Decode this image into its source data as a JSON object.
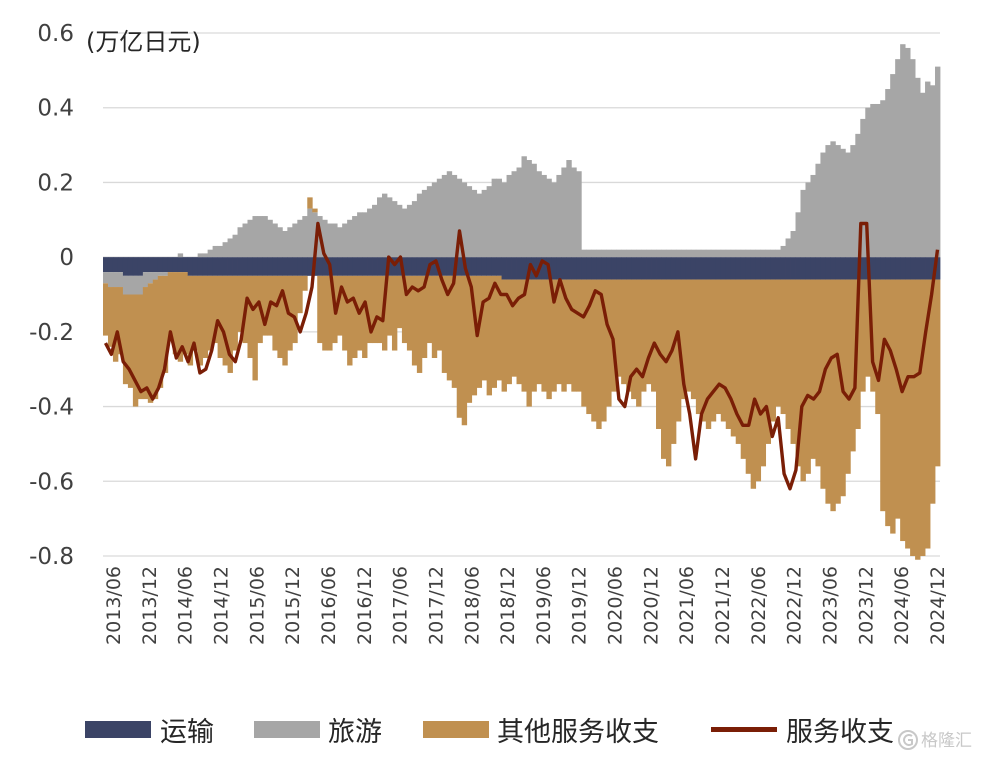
{
  "chart_data": {
    "type": "bar",
    "stacked": true,
    "unit_label": "(万亿日元)",
    "ylim": [
      -0.8,
      0.6
    ],
    "yticks": [
      "0.6",
      "0.4",
      "0.2",
      "0",
      "-0.2",
      "-0.4",
      "-0.6",
      "-0.8"
    ],
    "x_tick_labels": [
      "2013/06",
      "2013/12",
      "2014/06",
      "2014/12",
      "2015/06",
      "2015/12",
      "2016/06",
      "2016/12",
      "2017/06",
      "2017/12",
      "2018/06",
      "2018/12",
      "2019/06",
      "2019/12",
      "2020/06",
      "2020/12",
      "2021/06",
      "2021/12",
      "2022/06",
      "2022/12",
      "2023/06",
      "2023/12",
      "2024/06",
      "2024/12"
    ],
    "x_start": "2013/06",
    "x_end": "2024/12",
    "grid": true,
    "legend_position": "bottom",
    "series": [
      {
        "name": "运输",
        "type": "bar",
        "color": "#3b4466",
        "values": [
          -0.04,
          -0.04,
          -0.04,
          -0.04,
          -0.05,
          -0.05,
          -0.05,
          -0.05,
          -0.04,
          -0.04,
          -0.04,
          -0.04,
          -0.04,
          -0.04,
          -0.04,
          -0.04,
          -0.04,
          -0.05,
          -0.05,
          -0.05,
          -0.05,
          -0.05,
          -0.05,
          -0.05,
          -0.05,
          -0.05,
          -0.05,
          -0.05,
          -0.05,
          -0.05,
          -0.05,
          -0.05,
          -0.05,
          -0.05,
          -0.05,
          -0.05,
          -0.05,
          -0.05,
          -0.05,
          -0.05,
          -0.05,
          -0.05,
          -0.05,
          -0.05,
          -0.05,
          -0.05,
          -0.05,
          -0.05,
          -0.05,
          -0.05,
          -0.05,
          -0.05,
          -0.05,
          -0.05,
          -0.05,
          -0.05,
          -0.05,
          -0.05,
          -0.05,
          -0.05,
          -0.05,
          -0.05,
          -0.05,
          -0.05,
          -0.05,
          -0.05,
          -0.05,
          -0.05,
          -0.05,
          -0.05,
          -0.05,
          -0.05,
          -0.05,
          -0.05,
          -0.05,
          -0.05,
          -0.05,
          -0.05,
          -0.05,
          -0.05,
          -0.06,
          -0.06,
          -0.06,
          -0.06,
          -0.06,
          -0.06,
          -0.06,
          -0.06,
          -0.06,
          -0.06,
          -0.06,
          -0.06,
          -0.06,
          -0.06,
          -0.06,
          -0.06,
          -0.06,
          -0.06,
          -0.06,
          -0.06,
          -0.06,
          -0.06,
          -0.06,
          -0.06,
          -0.06,
          -0.06,
          -0.06,
          -0.06,
          -0.06,
          -0.06,
          -0.06,
          -0.06,
          -0.06,
          -0.06,
          -0.06,
          -0.06,
          -0.06,
          -0.06,
          -0.06,
          -0.06,
          -0.06,
          -0.06,
          -0.06,
          -0.06,
          -0.06,
          -0.06,
          -0.06,
          -0.06,
          -0.06,
          -0.06,
          -0.06,
          -0.06,
          -0.06,
          -0.06,
          -0.06,
          -0.06,
          -0.06,
          -0.06,
          -0.06,
          -0.06,
          -0.06,
          -0.06,
          -0.06,
          -0.06,
          -0.06,
          -0.06,
          -0.06,
          -0.06,
          -0.06,
          -0.06,
          -0.06,
          -0.06,
          -0.06,
          -0.06,
          -0.06,
          -0.06,
          -0.06,
          -0.06,
          -0.06,
          -0.06,
          -0.06,
          -0.06,
          -0.06,
          -0.06,
          -0.06,
          -0.06,
          -0.06,
          -0.06
        ]
      },
      {
        "name": "旅游",
        "type": "bar",
        "color": "#a6a6a6",
        "values": [
          -0.03,
          -0.04,
          -0.04,
          -0.04,
          -0.05,
          -0.05,
          -0.05,
          -0.05,
          -0.04,
          -0.03,
          -0.02,
          -0.01,
          -0.01,
          0.0,
          0.0,
          0.01,
          0.0,
          0.0,
          0.0,
          0.01,
          0.01,
          0.02,
          0.03,
          0.03,
          0.04,
          0.05,
          0.06,
          0.08,
          0.09,
          0.1,
          0.11,
          0.11,
          0.11,
          0.1,
          0.09,
          0.08,
          0.07,
          0.08,
          0.09,
          0.1,
          0.11,
          0.13,
          0.12,
          0.11,
          0.1,
          0.09,
          0.09,
          0.08,
          0.09,
          0.1,
          0.11,
          0.12,
          0.12,
          0.13,
          0.14,
          0.16,
          0.17,
          0.16,
          0.15,
          0.14,
          0.13,
          0.14,
          0.15,
          0.17,
          0.18,
          0.19,
          0.2,
          0.21,
          0.22,
          0.23,
          0.22,
          0.21,
          0.2,
          0.19,
          0.18,
          0.17,
          0.18,
          0.19,
          0.21,
          0.21,
          0.2,
          0.22,
          0.23,
          0.24,
          0.27,
          0.26,
          0.25,
          0.23,
          0.22,
          0.21,
          0.2,
          0.22,
          0.24,
          0.26,
          0.24,
          0.23,
          0.02,
          0.02,
          0.02,
          0.02,
          0.02,
          0.02,
          0.02,
          0.02,
          0.02,
          0.02,
          0.02,
          0.02,
          0.02,
          0.02,
          0.02,
          0.02,
          0.02,
          0.02,
          0.02,
          0.02,
          0.02,
          0.02,
          0.02,
          0.02,
          0.02,
          0.02,
          0.02,
          0.02,
          0.02,
          0.02,
          0.02,
          0.02,
          0.02,
          0.02,
          0.02,
          0.02,
          0.02,
          0.02,
          0.02,
          0.02,
          0.03,
          0.05,
          0.07,
          0.12,
          0.18,
          0.2,
          0.22,
          0.25,
          0.28,
          0.3,
          0.31,
          0.3,
          0.29,
          0.28,
          0.3,
          0.33,
          0.37,
          0.4,
          0.41,
          0.41,
          0.42,
          0.45,
          0.49,
          0.53,
          0.57,
          0.56,
          0.53,
          0.48,
          0.44,
          0.47,
          0.46,
          0.51,
          0.52
        ]
      },
      {
        "name": "其他服务收支",
        "type": "bar",
        "color": "#c09050",
        "values": [
          -0.14,
          -0.16,
          -0.2,
          -0.18,
          -0.24,
          -0.25,
          -0.3,
          -0.28,
          -0.3,
          -0.32,
          -0.32,
          -0.3,
          -0.26,
          -0.18,
          -0.22,
          -0.24,
          -0.22,
          -0.24,
          -0.2,
          -0.24,
          -0.22,
          -0.2,
          -0.18,
          -0.22,
          -0.24,
          -0.26,
          -0.2,
          -0.15,
          -0.18,
          -0.22,
          -0.28,
          -0.18,
          -0.16,
          -0.16,
          -0.2,
          -0.22,
          -0.24,
          -0.2,
          -0.18,
          -0.1,
          -0.04,
          0.03,
          0.01,
          -0.18,
          -0.2,
          -0.2,
          -0.18,
          -0.16,
          -0.2,
          -0.24,
          -0.22,
          -0.2,
          -0.22,
          -0.18,
          -0.18,
          -0.18,
          -0.2,
          -0.16,
          -0.2,
          -0.14,
          -0.18,
          -0.2,
          -0.24,
          -0.26,
          -0.22,
          -0.18,
          -0.22,
          -0.2,
          -0.26,
          -0.28,
          -0.3,
          -0.38,
          -0.4,
          -0.34,
          -0.32,
          -0.3,
          -0.28,
          -0.32,
          -0.3,
          -0.28,
          -0.3,
          -0.28,
          -0.26,
          -0.28,
          -0.3,
          -0.34,
          -0.3,
          -0.28,
          -0.3,
          -0.32,
          -0.3,
          -0.28,
          -0.3,
          -0.28,
          -0.3,
          -0.3,
          -0.34,
          -0.36,
          -0.38,
          -0.4,
          -0.38,
          -0.34,
          -0.3,
          -0.26,
          -0.28,
          -0.3,
          -0.32,
          -0.34,
          -0.3,
          -0.28,
          -0.3,
          -0.4,
          -0.48,
          -0.5,
          -0.44,
          -0.38,
          -0.32,
          -0.3,
          -0.32,
          -0.36,
          -0.38,
          -0.4,
          -0.38,
          -0.36,
          -0.38,
          -0.4,
          -0.42,
          -0.44,
          -0.48,
          -0.52,
          -0.56,
          -0.54,
          -0.5,
          -0.44,
          -0.38,
          -0.34,
          -0.36,
          -0.4,
          -0.44,
          -0.5,
          -0.54,
          -0.52,
          -0.48,
          -0.5,
          -0.56,
          -0.6,
          -0.62,
          -0.6,
          -0.58,
          -0.52,
          -0.46,
          -0.4,
          -0.3,
          -0.26,
          -0.3,
          -0.36,
          -0.62,
          -0.66,
          -0.68,
          -0.64,
          -0.7,
          -0.72,
          -0.74,
          -0.75,
          -0.74,
          -0.72,
          -0.6,
          -0.5,
          -0.44
        ]
      },
      {
        "name": "服务收支",
        "type": "line",
        "color": "#7a1e06",
        "values": [
          -0.23,
          -0.26,
          -0.2,
          -0.28,
          -0.3,
          -0.33,
          -0.36,
          -0.35,
          -0.38,
          -0.35,
          -0.3,
          -0.2,
          -0.27,
          -0.24,
          -0.28,
          -0.23,
          -0.31,
          -0.3,
          -0.25,
          -0.17,
          -0.2,
          -0.26,
          -0.28,
          -0.22,
          -0.11,
          -0.14,
          -0.12,
          -0.18,
          -0.12,
          -0.13,
          -0.09,
          -0.15,
          -0.16,
          -0.2,
          -0.15,
          -0.08,
          0.09,
          0.01,
          -0.02,
          -0.15,
          -0.08,
          -0.12,
          -0.11,
          -0.15,
          -0.12,
          -0.2,
          -0.16,
          -0.17,
          0.0,
          -0.02,
          0.0,
          -0.1,
          -0.08,
          -0.09,
          -0.08,
          -0.02,
          -0.01,
          -0.06,
          -0.1,
          -0.07,
          0.07,
          -0.03,
          -0.08,
          -0.21,
          -0.12,
          -0.11,
          -0.07,
          -0.1,
          -0.1,
          -0.13,
          -0.11,
          -0.1,
          -0.02,
          -0.05,
          -0.01,
          -0.02,
          -0.12,
          -0.06,
          -0.11,
          -0.14,
          -0.15,
          -0.16,
          -0.13,
          -0.09,
          -0.1,
          -0.18,
          -0.22,
          -0.38,
          -0.4,
          -0.32,
          -0.3,
          -0.32,
          -0.27,
          -0.23,
          -0.26,
          -0.28,
          -0.25,
          -0.2,
          -0.34,
          -0.42,
          -0.54,
          -0.42,
          -0.38,
          -0.36,
          -0.34,
          -0.35,
          -0.38,
          -0.42,
          -0.45,
          -0.45,
          -0.38,
          -0.42,
          -0.4,
          -0.48,
          -0.43,
          -0.58,
          -0.62,
          -0.57,
          -0.4,
          -0.37,
          -0.38,
          -0.36,
          -0.3,
          -0.27,
          -0.26,
          -0.36,
          -0.38,
          -0.35,
          0.09,
          0.09,
          -0.28,
          -0.33,
          -0.22,
          -0.25,
          -0.3,
          -0.36,
          -0.32,
          -0.32,
          -0.31,
          -0.2,
          -0.1,
          0.02
        ]
      }
    ]
  },
  "legend": {
    "transport": "运输",
    "travel": "旅游",
    "other": "其他服务收支",
    "services": "服务收支"
  },
  "colors": {
    "transport": "#3b4466",
    "travel": "#a6a6a6",
    "other": "#c09050",
    "services": "#7a1e06",
    "grid": "#d9d9d9"
  },
  "watermark": "格隆汇",
  "watermark_icon": "G-logo-icon"
}
